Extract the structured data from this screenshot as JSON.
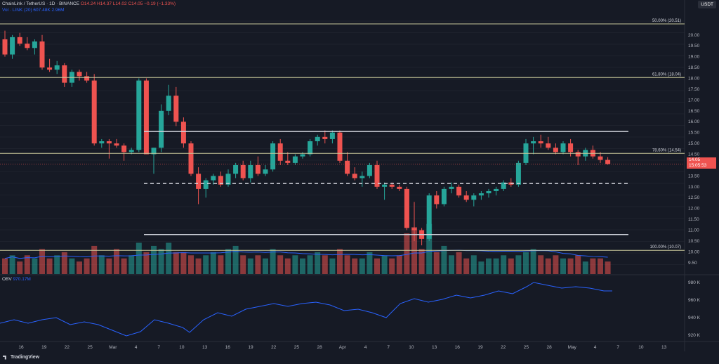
{
  "header": {
    "symbol": "ChainLink / TetherUS · 1D · BINANCE",
    "ohlc": "O14.24 H14.37 L14.02 C14.05 −0.19 (−1.33%)",
    "vol_symbol": "Vol · LINK",
    "vol_value": "807.48K −0.19 (−1.33%)",
    "vol_ma": "Vol · LINK (20)  607.48K  2.96M"
  },
  "currency": "USDT",
  "current_price": "14.05",
  "countdown": "15:05:53",
  "fib_levels": [
    {
      "label": "50.00% (20.51)",
      "value": 20.51
    },
    {
      "label": "61.80% (18.04)",
      "value": 18.04
    },
    {
      "label": "78.60% (14.54)",
      "value": 14.54
    },
    {
      "label": "100.00% (10.07)",
      "value": 10.07
    }
  ],
  "price_axis": [
    "20.00",
    "19.50",
    "19.00",
    "18.50",
    "18.00",
    "17.50",
    "17.00",
    "16.50",
    "16.00",
    "15.50",
    "15.00",
    "14.50",
    "14.00",
    "13.50",
    "13.00",
    "12.50",
    "12.00",
    "11.50",
    "11.00",
    "10.50",
    "10.00",
    "9.50"
  ],
  "obv_label": "OBV",
  "obv_value": "970.17M",
  "obv_axis": [
    "980 K",
    "960 K",
    "940 K",
    "920 K"
  ],
  "date_axis": [
    "16",
    "19",
    "22",
    "25",
    "Mar",
    "4",
    "7",
    "10",
    "13",
    "16",
    "19",
    "22",
    "25",
    "28",
    "Apr",
    "4",
    "7",
    "10",
    "13",
    "16",
    "19",
    "22",
    "25",
    "28",
    "May",
    "4",
    "7",
    "10",
    "13"
  ],
  "tradingview": "TradingView",
  "colors": {
    "up": "#26a69a",
    "down": "#ef5350",
    "fib": "#c8c89a",
    "hline": "#d1d4dc",
    "obv": "#2962ff"
  },
  "chart_data": {
    "type": "candlestick",
    "ohlc": [
      [
        19.8,
        20.2,
        19.0,
        19.1
      ],
      [
        19.1,
        20.0,
        18.9,
        19.9
      ],
      [
        19.9,
        20.1,
        19.5,
        19.6
      ],
      [
        19.6,
        19.9,
        19.3,
        19.4
      ],
      [
        19.4,
        19.8,
        19.1,
        19.7
      ],
      [
        19.7,
        20.0,
        18.4,
        18.5
      ],
      [
        18.5,
        18.9,
        18.3,
        18.4
      ],
      [
        18.4,
        18.8,
        18.2,
        18.6
      ],
      [
        18.6,
        18.7,
        17.6,
        17.8
      ],
      [
        17.8,
        18.4,
        17.6,
        18.3
      ],
      [
        18.3,
        18.4,
        17.9,
        18.1
      ],
      [
        18.1,
        18.3,
        17.8,
        17.9
      ],
      [
        17.9,
        18.2,
        14.9,
        15.0
      ],
      [
        15.0,
        15.2,
        14.8,
        15.1
      ],
      [
        15.1,
        15.2,
        14.3,
        15.0
      ],
      [
        15.0,
        15.2,
        14.8,
        14.9
      ],
      [
        14.9,
        15.0,
        14.2,
        14.6
      ],
      [
        14.6,
        14.8,
        14.5,
        14.7
      ],
      [
        14.7,
        18.0,
        14.6,
        17.9
      ],
      [
        17.9,
        18.0,
        14.5,
        14.5
      ],
      [
        14.5,
        14.8,
        13.6,
        14.8
      ],
      [
        14.8,
        16.8,
        14.6,
        16.5
      ],
      [
        16.5,
        17.7,
        16.3,
        17.2
      ],
      [
        17.2,
        17.6,
        15.8,
        16.0
      ],
      [
        16.0,
        16.2,
        14.8,
        15.0
      ],
      [
        15.0,
        15.1,
        13.5,
        13.6
      ],
      [
        13.6,
        13.9,
        12.2,
        12.9
      ],
      [
        12.9,
        13.4,
        12.5,
        13.3
      ],
      [
        13.3,
        13.6,
        13.1,
        13.5
      ],
      [
        13.5,
        13.7,
        13.0,
        13.1
      ],
      [
        13.1,
        13.8,
        13.0,
        13.6
      ],
      [
        13.6,
        14.1,
        13.4,
        14.0
      ],
      [
        14.0,
        14.2,
        13.3,
        13.4
      ],
      [
        13.4,
        14.2,
        13.2,
        14.0
      ],
      [
        14.0,
        14.4,
        13.5,
        13.6
      ],
      [
        13.6,
        14.0,
        13.5,
        13.8
      ],
      [
        13.8,
        15.1,
        13.7,
        15.0
      ],
      [
        15.0,
        15.2,
        14.0,
        14.2
      ],
      [
        14.2,
        14.6,
        14.0,
        14.1
      ],
      [
        14.1,
        14.5,
        14.0,
        14.4
      ],
      [
        14.4,
        14.6,
        14.3,
        14.5
      ],
      [
        14.5,
        15.2,
        14.4,
        15.1
      ],
      [
        15.1,
        15.4,
        14.9,
        15.3
      ],
      [
        15.3,
        15.6,
        15.0,
        15.2
      ],
      [
        15.2,
        15.6,
        15.0,
        15.5
      ],
      [
        15.5,
        15.6,
        14.1,
        14.2
      ],
      [
        14.2,
        14.6,
        13.5,
        13.6
      ],
      [
        13.6,
        13.9,
        13.3,
        13.4
      ],
      [
        13.4,
        13.7,
        13.0,
        13.5
      ],
      [
        13.5,
        14.1,
        13.4,
        14.0
      ],
      [
        14.0,
        14.2,
        12.9,
        13.0
      ],
      [
        13.0,
        13.2,
        12.4,
        13.1
      ],
      [
        13.1,
        13.2,
        12.9,
        13.0
      ],
      [
        13.0,
        13.1,
        12.8,
        12.9
      ],
      [
        12.9,
        13.0,
        11.0,
        11.1
      ],
      [
        11.1,
        12.3,
        10.5,
        11.0
      ],
      [
        11.0,
        11.1,
        10.3,
        10.6
      ],
      [
        10.6,
        12.7,
        10.5,
        12.6
      ],
      [
        12.6,
        12.8,
        12.0,
        12.2
      ],
      [
        12.2,
        13.0,
        12.1,
        12.9
      ],
      [
        12.9,
        13.2,
        12.7,
        13.0
      ],
      [
        13.0,
        13.1,
        12.5,
        12.6
      ],
      [
        12.6,
        12.8,
        12.3,
        12.4
      ],
      [
        12.4,
        12.7,
        12.1,
        12.6
      ],
      [
        12.6,
        12.8,
        12.4,
        12.7
      ],
      [
        12.7,
        12.9,
        12.5,
        12.8
      ],
      [
        12.8,
        13.0,
        12.6,
        12.9
      ],
      [
        12.9,
        13.3,
        12.8,
        13.2
      ],
      [
        13.2,
        13.4,
        13.0,
        13.1
      ],
      [
        13.1,
        14.2,
        13.0,
        14.1
      ],
      [
        14.1,
        15.2,
        14.0,
        15.0
      ],
      [
        15.0,
        15.3,
        14.5,
        15.1
      ],
      [
        15.1,
        15.4,
        14.8,
        15.0
      ],
      [
        15.0,
        15.3,
        14.7,
        14.8
      ],
      [
        14.8,
        15.0,
        14.5,
        14.6
      ],
      [
        14.6,
        15.1,
        14.5,
        15.0
      ],
      [
        15.0,
        15.2,
        14.4,
        14.6
      ],
      [
        14.6,
        14.7,
        14.0,
        14.4
      ],
      [
        14.4,
        14.8,
        14.2,
        14.7
      ],
      [
        14.7,
        14.9,
        14.3,
        14.4
      ],
      [
        14.4,
        14.6,
        14.1,
        14.24
      ],
      [
        14.24,
        14.37,
        14.02,
        14.05
      ]
    ],
    "volume": [
      5,
      6,
      4,
      6,
      5,
      8,
      5,
      6,
      7,
      5,
      4,
      5,
      9,
      6,
      5,
      8,
      5,
      6,
      10,
      7,
      9,
      8,
      10,
      7,
      7,
      6,
      5,
      6,
      7,
      6,
      8,
      9,
      6,
      5,
      6,
      5,
      8,
      6,
      5,
      6,
      5,
      6,
      7,
      6,
      5,
      8,
      6,
      5,
      5,
      7,
      5,
      6,
      5,
      6,
      13,
      15,
      8,
      16,
      7,
      9,
      6,
      7,
      5,
      6,
      4,
      5,
      5,
      6,
      5,
      6,
      7,
      8,
      6,
      5,
      6,
      5,
      5,
      6,
      4,
      5,
      5,
      4
    ],
    "obv_ylim": [
      915,
      990
    ],
    "price_ylim": [
      9.3,
      20.9
    ]
  }
}
